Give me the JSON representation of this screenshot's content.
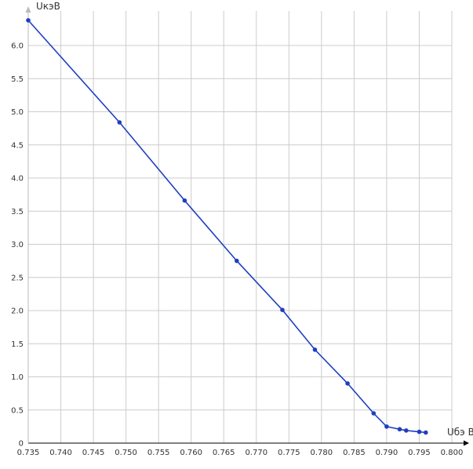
{
  "colors": {
    "background": "#ffffff",
    "grid": "#cccccc",
    "axis": "#000000",
    "series": "#1f3fbf",
    "text": "#333333"
  },
  "chart_data": {
    "type": "line",
    "title": "",
    "xlabel": "Uбэ В",
    "ylabel": "UкэВ",
    "xlim": [
      0.735,
      0.8
    ],
    "ylim": [
      0,
      6.4
    ],
    "grid": true,
    "x_ticks": [
      "0.735",
      "0.740",
      "0.745",
      "0.750",
      "0.755",
      "0.760",
      "0.765",
      "0.770",
      "0.775",
      "0.780",
      "0.785",
      "0.790",
      "0.795",
      "0.800"
    ],
    "y_ticks": [
      "0.5",
      "1.0",
      "1.5",
      "2.0",
      "2.5",
      "3.0",
      "3.5",
      "4.0",
      "4.5",
      "5.0",
      "5.5",
      "6.0"
    ],
    "series": [
      {
        "x": [
          0.735,
          0.749,
          0.759,
          0.767,
          0.774,
          0.779,
          0.784,
          0.788,
          0.79,
          0.792,
          0.793,
          0.795,
          0.796
        ],
        "y": [
          6.38,
          4.84,
          3.66,
          2.75,
          2.01,
          1.41,
          0.9,
          0.45,
          0.25,
          0.21,
          0.19,
          0.17,
          0.16
        ]
      }
    ]
  }
}
